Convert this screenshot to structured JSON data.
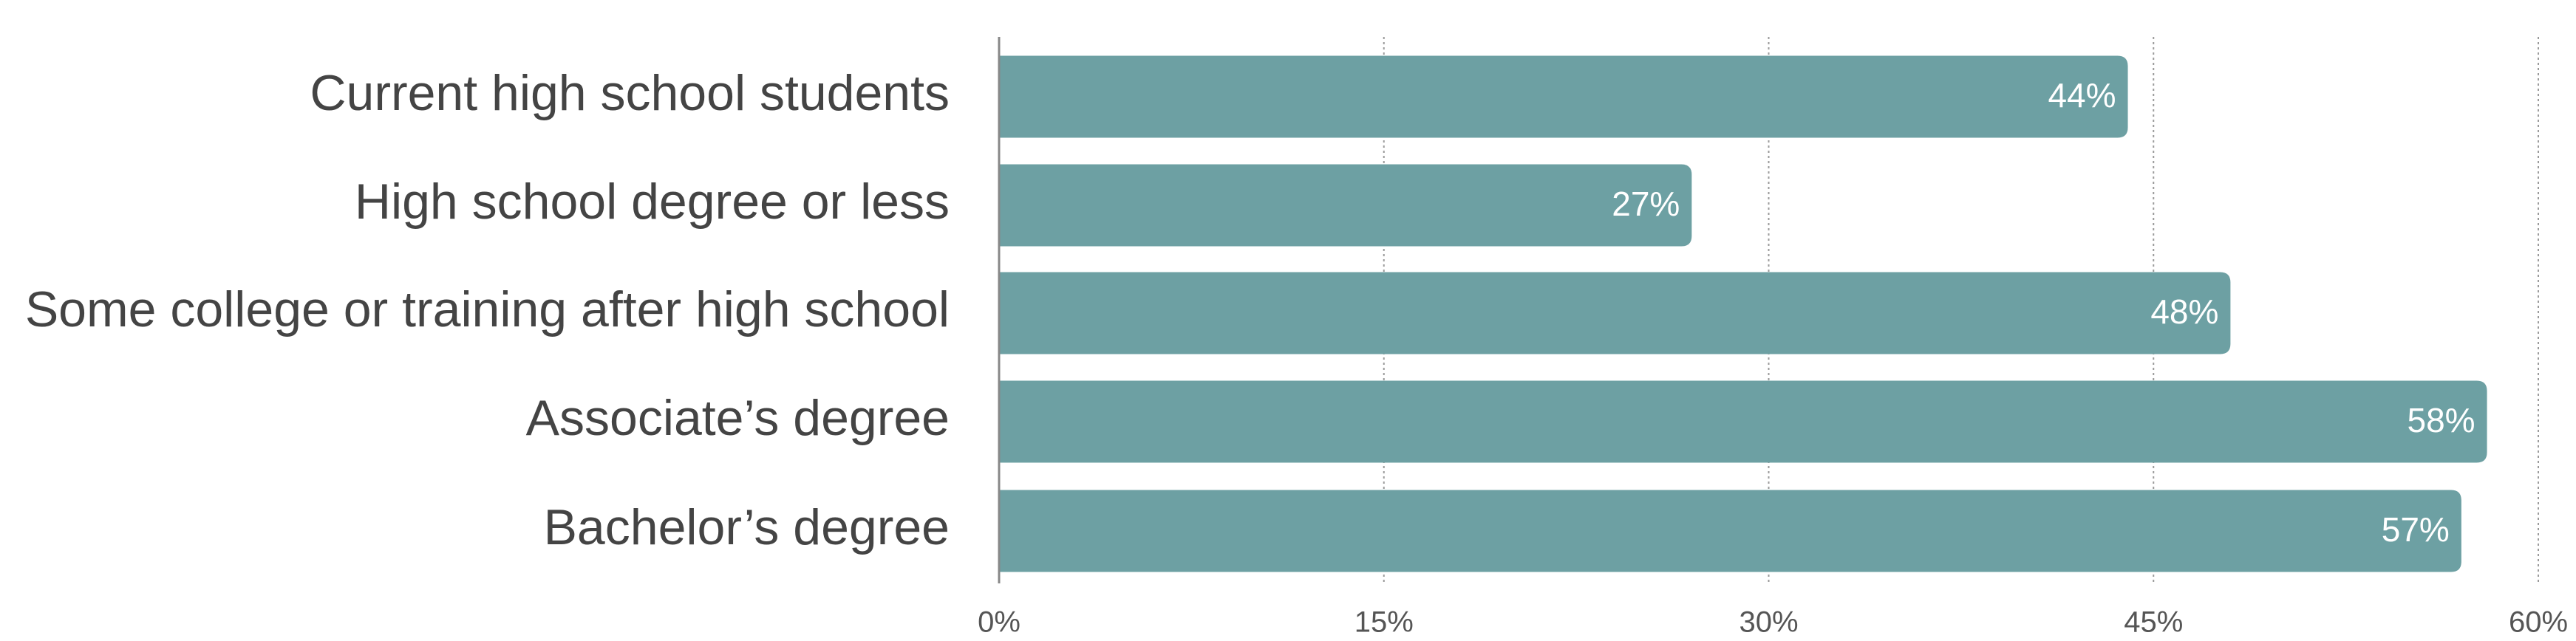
{
  "chart_data": {
    "type": "barh",
    "categories": [
      "Current high school students",
      "High school degree or less",
      "Some college or training after high school",
      "Associate’s degree",
      "Bachelor’s degree"
    ],
    "values": [
      44,
      27,
      48,
      58,
      57
    ],
    "value_labels": [
      "44%",
      "27%",
      "48%",
      "58%",
      "57%"
    ],
    "color": "#6da0a3",
    "xlim": [
      0,
      60
    ],
    "xticks": [
      {
        "value": 0,
        "label": "0%"
      },
      {
        "value": 15,
        "label": "15%"
      },
      {
        "value": 30,
        "label": "30%"
      },
      {
        "value": 45,
        "label": "45%"
      },
      {
        "value": 60,
        "label": "60%"
      }
    ],
    "grid": true
  }
}
